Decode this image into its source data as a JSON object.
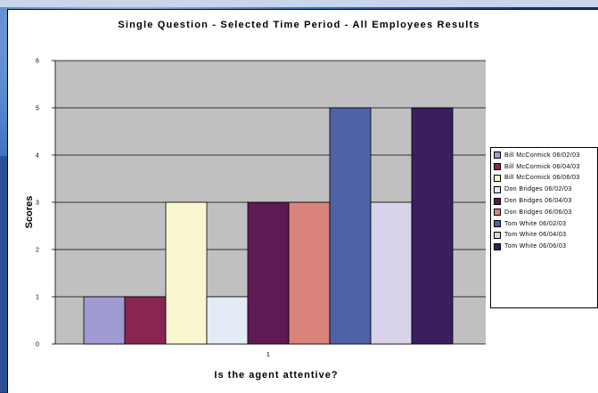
{
  "chart_data": {
    "type": "bar",
    "title": "Single Question - Selected Time Period - All Employees Results",
    "xlabel": "Is the agent attentive?",
    "ylabel": "Scores",
    "categories": [
      "1"
    ],
    "ylim": [
      0,
      6
    ],
    "yticks": [
      0,
      1,
      2,
      3,
      4,
      5,
      6
    ],
    "grid": true,
    "legend_position": "right",
    "series": [
      {
        "name": "Bill McCormick 06/02/03",
        "values": [
          1
        ],
        "color": "#9f9ad0"
      },
      {
        "name": "Bill McCormick 06/04/03",
        "values": [
          1
        ],
        "color": "#8a2552"
      },
      {
        "name": "Bill McCormick 06/06/03",
        "values": [
          3
        ],
        "color": "#faf7d0"
      },
      {
        "name": "Don Bridges 06/02/03",
        "values": [
          1
        ],
        "color": "#e3ecf6"
      },
      {
        "name": "Don Bridges 06/04/03",
        "values": [
          3
        ],
        "color": "#5e1a52"
      },
      {
        "name": "Don Bridges 06/06/03",
        "values": [
          3
        ],
        "color": "#d9837a"
      },
      {
        "name": "Tom White 06/02/03",
        "values": [
          5
        ],
        "color": "#4f62a8"
      },
      {
        "name": "Tom White 06/04/03",
        "values": [
          3
        ],
        "color": "#d8d3ea"
      },
      {
        "name": "Tom White 06/06/03",
        "values": [
          5
        ],
        "color": "#3a1f5e"
      }
    ]
  },
  "colors": {
    "plot_background": "#c0c0c0",
    "gridline": "#000000"
  }
}
